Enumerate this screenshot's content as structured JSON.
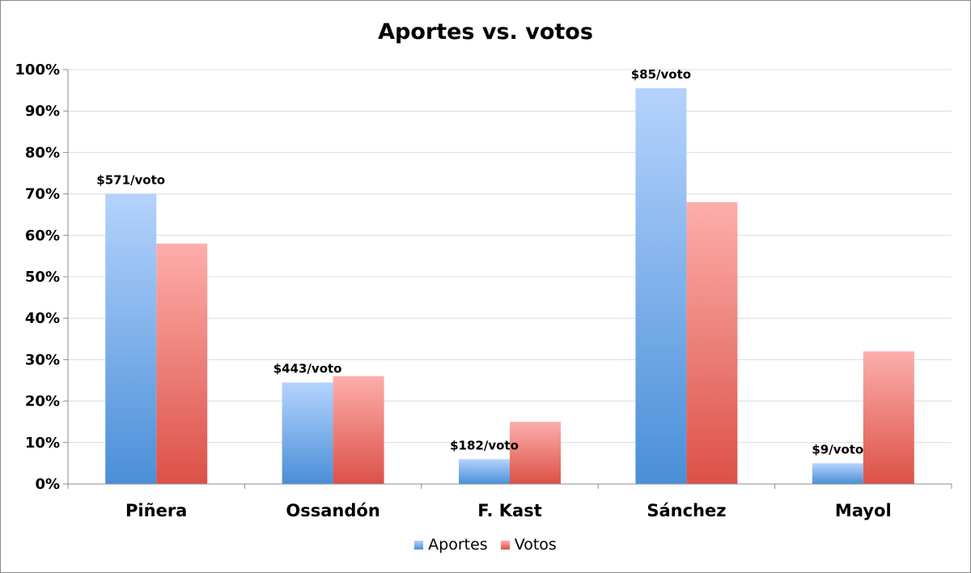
{
  "chart_data": {
    "type": "bar",
    "title": "Aportes vs. votos",
    "categories": [
      "Piñera",
      "Ossandón",
      "F. Kast",
      "Sánchez",
      "Mayol"
    ],
    "series": [
      {
        "name": "Aportes",
        "values": [
          70,
          24.5,
          6,
          95.5,
          5
        ]
      },
      {
        "name": "Votos",
        "values": [
          58,
          26,
          15,
          68,
          32
        ]
      }
    ],
    "bar_labels": [
      "$571/voto",
      "$443/voto",
      "$182/voto",
      "$85/voto",
      "$9/voto"
    ],
    "ylim": [
      0,
      100
    ],
    "yticks": [
      "0%",
      "10%",
      "20%",
      "30%",
      "40%",
      "50%",
      "60%",
      "70%",
      "80%",
      "90%",
      "100%"
    ],
    "xlabel": "",
    "ylabel": "",
    "grid": true,
    "legend_position": "bottom",
    "colors": {
      "Aportes": {
        "top": "#b5d3fd",
        "bottom": "#4a8fd8",
        "legend": "#5b9ae0"
      },
      "Votos": {
        "top": "#fdaeab",
        "bottom": "#dc5147",
        "legend": "#e56b63"
      }
    }
  }
}
